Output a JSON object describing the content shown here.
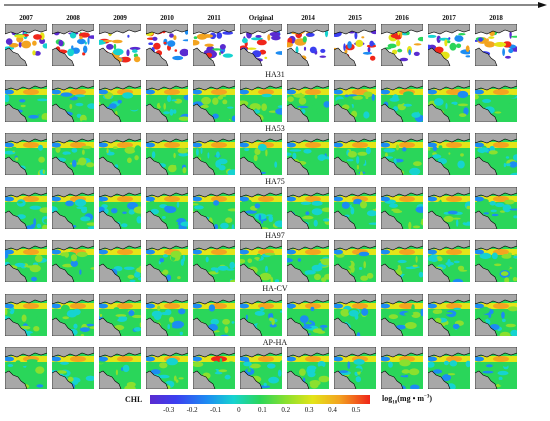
{
  "years": [
    "2007",
    "2008",
    "2009",
    "2010",
    "2011",
    "Original",
    "2014",
    "2015",
    "2016",
    "2017",
    "2018"
  ],
  "rows": [
    {
      "label": "",
      "kind": "original"
    },
    {
      "label": "HA31",
      "kind": "recon"
    },
    {
      "label": "HA53",
      "kind": "recon"
    },
    {
      "label": "HA75",
      "kind": "recon"
    },
    {
      "label": "HA97",
      "kind": "recon"
    },
    {
      "label": "HA-CV",
      "kind": "recon"
    },
    {
      "label": "AP-HA",
      "kind": "recon"
    }
  ],
  "colorbar": {
    "name": "CHL",
    "unit_base": "log",
    "unit_sub": "10",
    "unit_rest": "(mg • m",
    "unit_sup": "−3",
    "unit_end": ")",
    "ticks": [
      "-0.3",
      "-0.2",
      "-0.1",
      "0",
      "0.1",
      "0.2",
      "0.3",
      "0.4",
      "0.5"
    ],
    "tick_values": [
      -0.3,
      -0.2,
      -0.1,
      0,
      0.1,
      0.2,
      0.3,
      0.4,
      0.5
    ],
    "range": [
      -0.38,
      0.56
    ],
    "colors": [
      "#5a2bd0",
      "#3b3ff0",
      "#1c8cf2",
      "#16d3d0",
      "#2ad65a",
      "#8be02e",
      "#e4e418",
      "#f3a420",
      "#f0261a"
    ]
  }
}
